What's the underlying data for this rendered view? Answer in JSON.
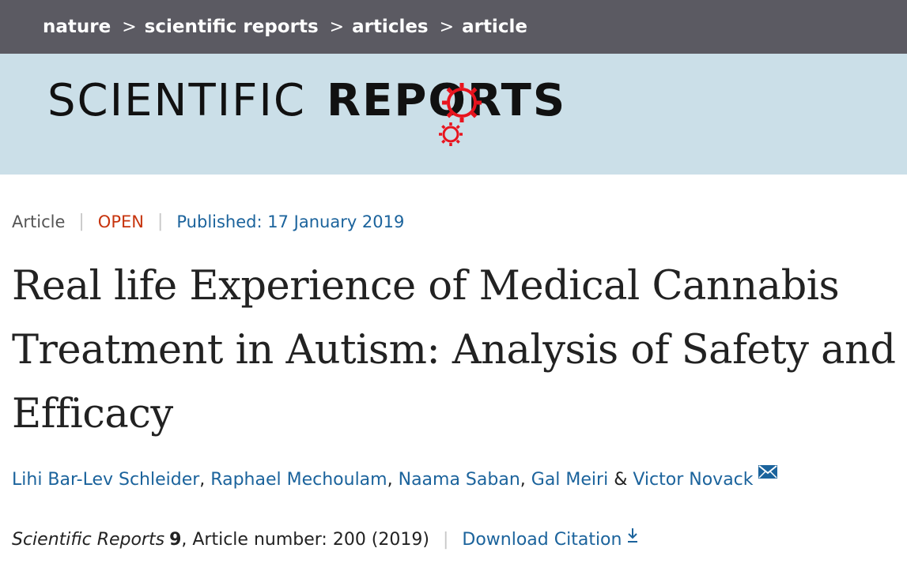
{
  "breadcrumb": {
    "items": [
      "nature",
      "scientific reports",
      "articles",
      "article"
    ],
    "separator": ">"
  },
  "journal_logo": {
    "light_text": "SCIENTIFIC",
    "bold_text": "REPORTS",
    "accent_color": "#e8141e"
  },
  "article": {
    "type": "Article",
    "access": "OPEN",
    "published": "Published: 17 January 2019",
    "title": "Real life Experience of Medical Cannabis Treatment in Autism: Analysis of Safety and Efficacy",
    "authors": [
      {
        "name": "Lihi Bar-Lev Schleider",
        "sep": ", "
      },
      {
        "name": "Raphael Mechoulam",
        "sep": ", "
      },
      {
        "name": "Naama Saban",
        "sep": ", "
      },
      {
        "name": "Gal Meiri",
        "sep": " & "
      },
      {
        "name": "Victor Novack",
        "sep": ""
      }
    ],
    "journal": "Scientific Reports",
    "volume": "9",
    "article_number": ", Article number: 200 (2019)",
    "download_citation": "Download Citation"
  },
  "colors": {
    "topbar": "#5b5a62",
    "banner": "#cbdfe8",
    "link": "#1b639c",
    "open": "#c7340d"
  },
  "icons": {
    "author_contact": "envelope-icon",
    "download": "download-arrow-icon",
    "logo_gears": "gear-icon"
  }
}
